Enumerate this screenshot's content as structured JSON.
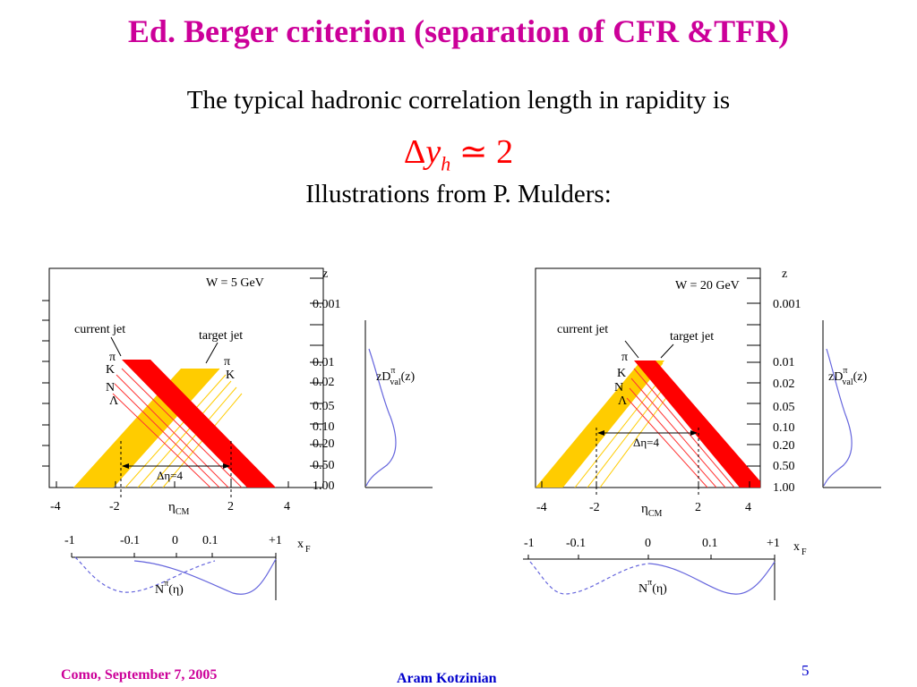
{
  "title": "Ed. Berger criterion (separation of CFR &TFR)",
  "intro_text": "The typical hadronic correlation length in rapidity is",
  "formula": {
    "symbol": "Δ",
    "var": "y",
    "sub": "h",
    "rel": "≃",
    "value": "2"
  },
  "illustrations_text": "Illustrations from P. Mulders:",
  "colors": {
    "title": "#cc0099",
    "footer_author": "#0000cc",
    "current_jet": "#ff0000",
    "target_jet": "#ffcc00",
    "curve": "#6666dd"
  },
  "figures": [
    {
      "w_label": "W =  5 GeV",
      "current_label": "current jet",
      "target_label": "target jet",
      "hadrons_left": [
        "π",
        "K",
        "N",
        "Λ"
      ],
      "hadrons_right": [
        "π",
        "K"
      ],
      "z_axis_label": "z",
      "z_ticks": [
        "0.001",
        "0.01",
        "0.02",
        "0.05",
        "0.10",
        "0.20",
        "0.50",
        "1.00"
      ],
      "eta_ticks": [
        "-4",
        "-2",
        "2",
        "4"
      ],
      "eta_label": "η",
      "eta_sub": "CM",
      "delta_label": "Δη=4",
      "dist_label": {
        "main": "zD",
        "sup": "π",
        "sub": "val",
        "arg": "(z)"
      },
      "xf_ticks": [
        "-1",
        "-0.1",
        "0",
        "0.1",
        "+1"
      ],
      "xf_label": {
        "main": "x",
        "sub": "F"
      },
      "n_label": {
        "main": "N",
        "sup": "π",
        "arg": "(η)"
      }
    },
    {
      "w_label": "W = 20 GeV",
      "current_label": "current jet",
      "target_label": "target jet",
      "hadrons_left": [
        "π",
        "K",
        "N",
        "Λ"
      ],
      "hadrons_right": [],
      "z_axis_label": "z",
      "z_ticks": [
        "0.001",
        "0.01",
        "0.02",
        "0.05",
        "0.10",
        "0.20",
        "0.50",
        "1.00"
      ],
      "eta_ticks": [
        "-4",
        "-2",
        "2",
        "4"
      ],
      "eta_label": "η",
      "eta_sub": "CM",
      "delta_label": "Δη=4",
      "dist_label": {
        "main": "zD",
        "sup": "π",
        "sub": "val",
        "arg": "(z)"
      },
      "xf_ticks": [
        "-1",
        "-0.1",
        "0",
        "0.1",
        "+1"
      ],
      "xf_label": {
        "main": "x",
        "sub": "F"
      },
      "n_label": {
        "main": "N",
        "sup": "π",
        "arg": "(η)"
      }
    }
  ],
  "footer": {
    "left": "Como, September 7,  2005",
    "center": "Aram Kotzinian",
    "page": "5"
  }
}
